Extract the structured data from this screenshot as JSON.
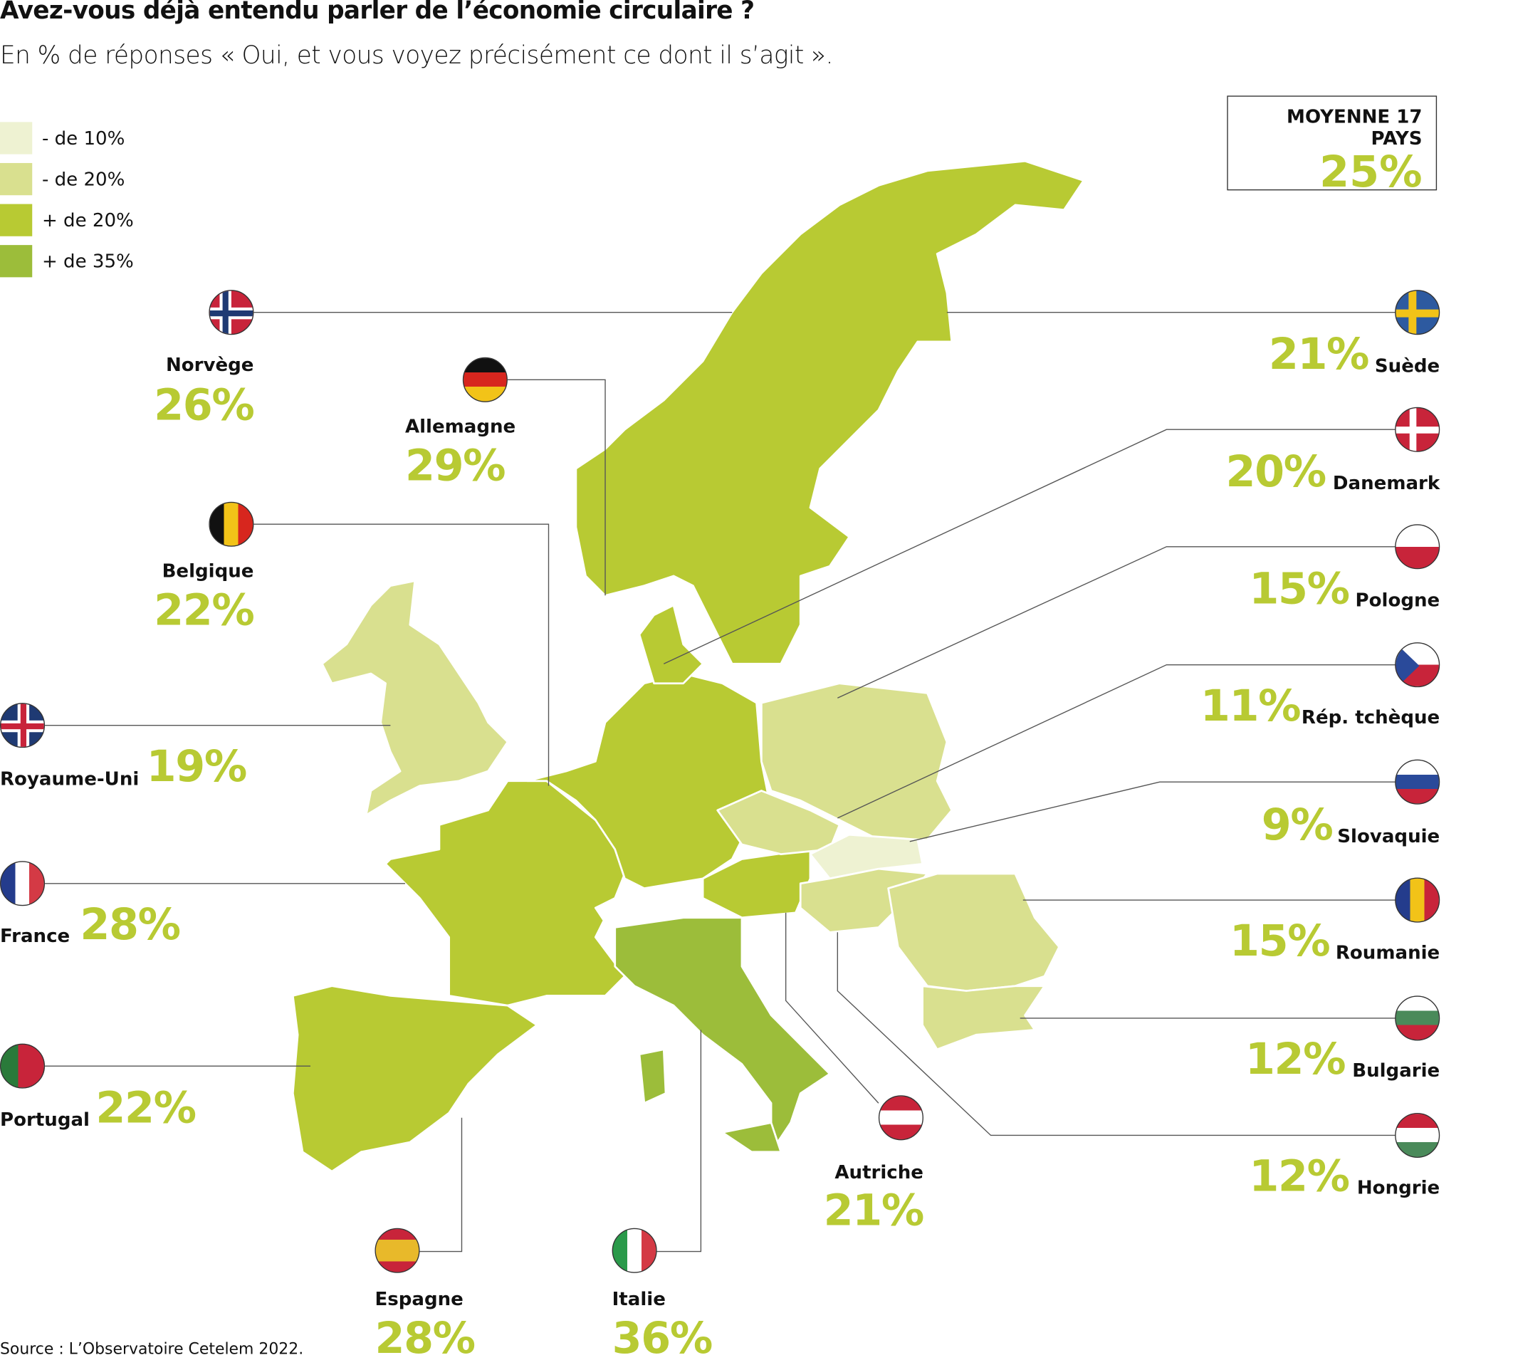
{
  "title": "Avez-vous déjà entendu parler de l’économie circulaire ?",
  "subtitle": "En % de réponses « Oui, et vous voyez précisément ce dont il s’agit ».",
  "legend": [
    {
      "label": "- de 10%",
      "color": "#eef2d2"
    },
    {
      "label": "- de 20%",
      "color": "#d9e08f"
    },
    {
      "label": "+ de 20%",
      "color": "#b8ca33"
    },
    {
      "label": "+ de 35%",
      "color": "#9cbd3a"
    }
  ],
  "average": {
    "label": "MOYENNE 17 PAYS",
    "value": "25%"
  },
  "countries": [
    {
      "name": "Norvège",
      "value": "26%"
    },
    {
      "name": "Allemagne",
      "value": "29%"
    },
    {
      "name": "Belgique",
      "value": "22%"
    },
    {
      "name": "Royaume-Uni",
      "value": "19%"
    },
    {
      "name": "France",
      "value": "28%"
    },
    {
      "name": "Portugal",
      "value": "22%"
    },
    {
      "name": "Espagne",
      "value": "28%"
    },
    {
      "name": "Italie",
      "value": "36%"
    },
    {
      "name": "Autriche",
      "value": "21%"
    },
    {
      "name": "Suède",
      "value": "21%"
    },
    {
      "name": "Danemark",
      "value": "20%"
    },
    {
      "name": "Pologne",
      "value": "15%"
    },
    {
      "name": "Rép. tchèque",
      "value": "11%"
    },
    {
      "name": "Slovaquie",
      "value": "9%"
    },
    {
      "name": "Roumanie",
      "value": "15%"
    },
    {
      "name": "Bulgarie",
      "value": "12%"
    },
    {
      "name": "Hongrie",
      "value": "12%"
    }
  ],
  "source": "Source : L’Observatoire Cetelem 2022."
}
